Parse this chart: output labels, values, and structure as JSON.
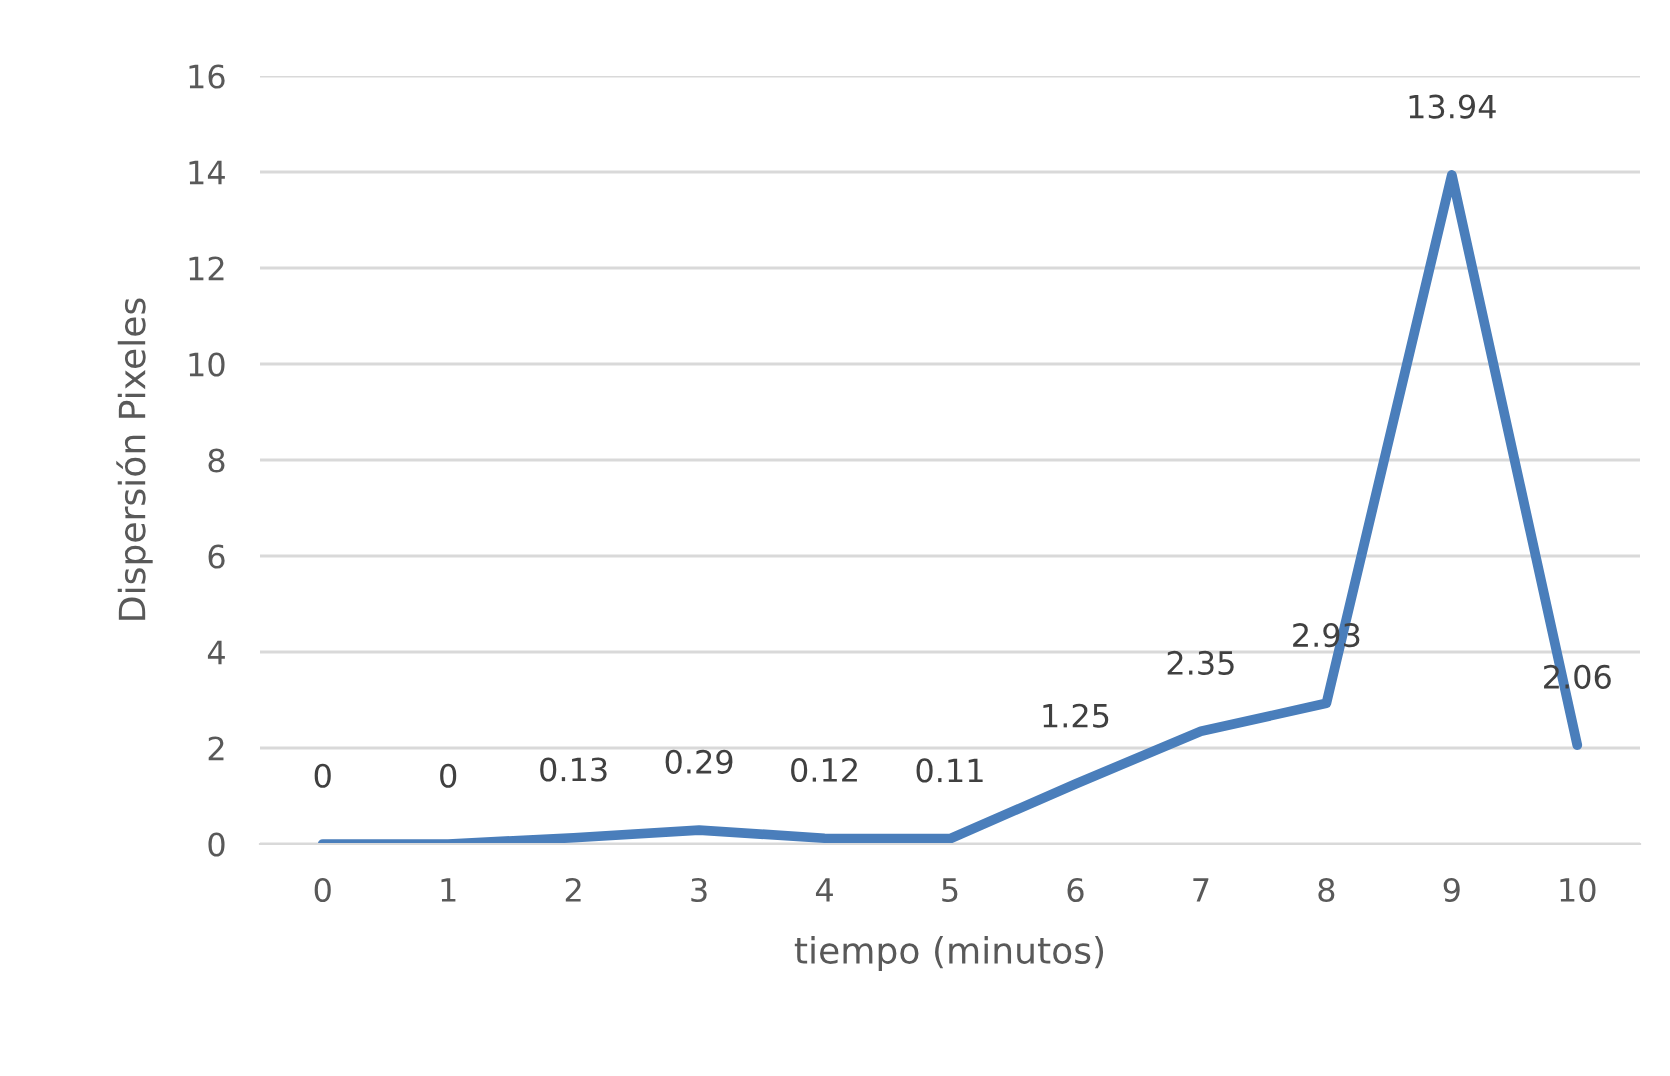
{
  "chart_data": {
    "type": "line",
    "xlabel": "tiempo (minutos)",
    "ylabel": "Dispersión Pixeles",
    "categories": [
      "0",
      "1",
      "2",
      "3",
      "4",
      "5",
      "6",
      "7",
      "8",
      "9",
      "10"
    ],
    "series": [
      {
        "color": "#4a7ebb",
        "values": [
          0,
          0,
          0.13,
          0.29,
          0.12,
          0.11,
          1.25,
          2.35,
          2.93,
          13.94,
          2.06
        ]
      }
    ],
    "ylim": [
      0,
      16
    ],
    "yticks": [
      0,
      2,
      4,
      6,
      8,
      10,
      12,
      14,
      16
    ],
    "grid": "y",
    "data_labels": true,
    "marker": "none",
    "line_style": "solid",
    "legend": false
  }
}
